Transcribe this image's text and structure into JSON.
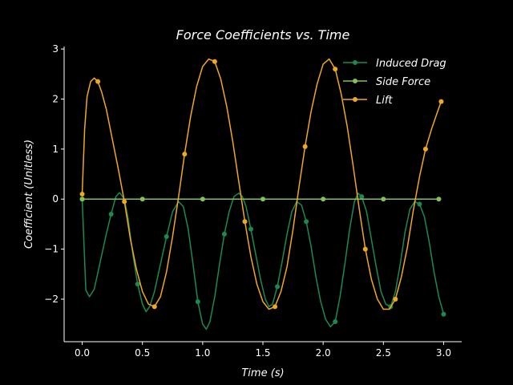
{
  "chart_data": {
    "type": "line",
    "title": "Force Coefficients vs. Time",
    "xlabel": "Time (s)",
    "ylabel": "Coefficient (Unitless)",
    "xlim": [
      -0.15,
      3.15
    ],
    "ylim": [
      -2.85,
      3.05
    ],
    "xticks": [
      0.0,
      0.5,
      1.0,
      1.5,
      2.0,
      2.5,
      3.0
    ],
    "xtick_labels": [
      "0.0",
      "0.5",
      "1.0",
      "1.5",
      "2.0",
      "2.5",
      "3.0"
    ],
    "yticks": [
      -2,
      -1,
      0,
      1,
      2,
      3
    ],
    "ytick_labels": [
      "−2",
      "−1",
      "0",
      "1",
      "2",
      "3"
    ],
    "grid": false,
    "legend": "top-right",
    "background": "#000000",
    "series": [
      {
        "name": "Induced Drag",
        "color": "#1a8a50",
        "x": [
          0.0,
          0.03,
          0.06,
          0.1,
          0.15,
          0.2,
          0.24,
          0.28,
          0.31,
          0.35,
          0.38,
          0.42,
          0.46,
          0.5,
          0.53,
          0.56,
          0.6,
          0.65,
          0.7,
          0.75,
          0.8,
          0.84,
          0.88,
          0.92,
          0.96,
          1.0,
          1.03,
          1.06,
          1.1,
          1.14,
          1.18,
          1.22,
          1.26,
          1.3,
          1.33,
          1.36,
          1.4,
          1.44,
          1.48,
          1.52,
          1.55,
          1.58,
          1.62,
          1.66,
          1.7,
          1.74,
          1.78,
          1.82,
          1.86,
          1.9,
          1.94,
          1.98,
          2.02,
          2.06,
          2.1,
          2.14,
          2.18,
          2.22,
          2.26,
          2.29,
          2.32,
          2.36,
          2.4,
          2.44,
          2.48,
          2.52,
          2.56,
          2.6,
          2.64,
          2.68,
          2.72,
          2.76,
          2.8,
          2.84,
          2.88,
          2.92,
          2.96,
          3.0
        ],
        "y": [
          0.0,
          -1.82,
          -1.95,
          -1.8,
          -1.25,
          -0.7,
          -0.3,
          0.05,
          0.13,
          0.0,
          -0.38,
          -1.1,
          -1.7,
          -2.1,
          -2.25,
          -2.15,
          -1.85,
          -1.3,
          -0.75,
          -0.25,
          -0.05,
          -0.15,
          -0.6,
          -1.3,
          -2.05,
          -2.5,
          -2.6,
          -2.45,
          -1.95,
          -1.3,
          -0.7,
          -0.25,
          0.05,
          0.12,
          0.05,
          -0.15,
          -0.6,
          -1.1,
          -1.6,
          -2.0,
          -2.15,
          -2.1,
          -1.75,
          -1.25,
          -0.7,
          -0.25,
          -0.05,
          -0.12,
          -0.45,
          -0.95,
          -1.55,
          -2.05,
          -2.4,
          -2.55,
          -2.45,
          -1.95,
          -1.3,
          -0.6,
          -0.05,
          0.12,
          0.05,
          -0.25,
          -0.8,
          -1.35,
          -1.85,
          -2.1,
          -2.15,
          -1.85,
          -1.3,
          -0.65,
          -0.2,
          -0.05,
          -0.1,
          -0.35,
          -0.85,
          -1.45,
          -1.95,
          -2.3
        ]
      },
      {
        "name": "Side Force",
        "color": "#82c05a",
        "x": [
          0.0,
          0.5,
          1.0,
          1.5,
          2.0,
          2.5,
          2.96
        ],
        "y": [
          0.0,
          0.0,
          0.0,
          0.0,
          0.0,
          0.0,
          0.0
        ]
      },
      {
        "name": "Lift",
        "color": "#f0a81e",
        "x": [
          0.0,
          0.02,
          0.04,
          0.07,
          0.1,
          0.13,
          0.16,
          0.2,
          0.25,
          0.3,
          0.35,
          0.4,
          0.45,
          0.5,
          0.55,
          0.6,
          0.65,
          0.7,
          0.75,
          0.8,
          0.85,
          0.9,
          0.95,
          1.0,
          1.05,
          1.1,
          1.15,
          1.2,
          1.25,
          1.3,
          1.35,
          1.4,
          1.45,
          1.5,
          1.55,
          1.6,
          1.65,
          1.7,
          1.75,
          1.8,
          1.85,
          1.9,
          1.95,
          2.0,
          2.05,
          2.1,
          2.15,
          2.2,
          2.25,
          2.3,
          2.35,
          2.4,
          2.45,
          2.5,
          2.55,
          2.6,
          2.65,
          2.7,
          2.75,
          2.8,
          2.85,
          2.9,
          2.95,
          2.98
        ],
        "y": [
          0.1,
          1.4,
          2.05,
          2.35,
          2.42,
          2.35,
          2.15,
          1.8,
          1.2,
          0.6,
          -0.05,
          -0.8,
          -1.4,
          -1.85,
          -2.1,
          -2.15,
          -1.95,
          -1.45,
          -0.75,
          0.05,
          0.9,
          1.65,
          2.25,
          2.65,
          2.8,
          2.75,
          2.4,
          1.85,
          1.15,
          0.35,
          -0.45,
          -1.15,
          -1.7,
          -2.05,
          -2.2,
          -2.15,
          -1.85,
          -1.35,
          -0.6,
          0.25,
          1.05,
          1.75,
          2.3,
          2.7,
          2.8,
          2.6,
          2.1,
          1.45,
          0.65,
          -0.2,
          -1.0,
          -1.6,
          -2.0,
          -2.2,
          -2.2,
          -2.0,
          -1.55,
          -0.95,
          -0.2,
          0.45,
          1.0,
          1.4,
          1.75,
          1.95
        ]
      }
    ]
  }
}
